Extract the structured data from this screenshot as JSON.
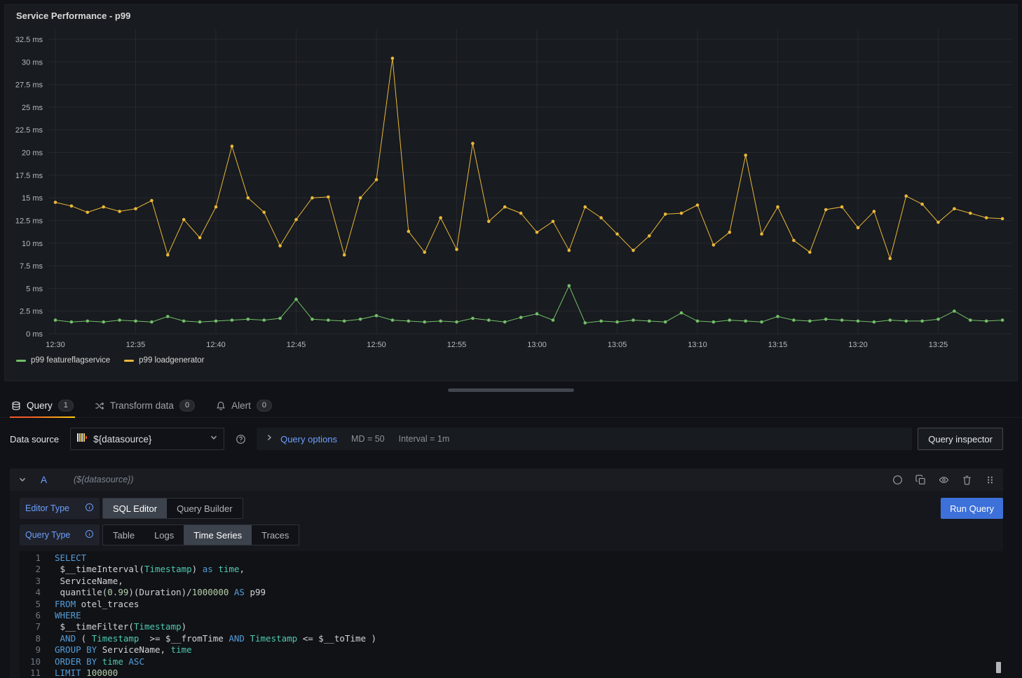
{
  "panel": {
    "title": "Service Performance - p99"
  },
  "chart_data": {
    "type": "line",
    "title": "Service Performance - p99",
    "x_start": "12:30",
    "x_end": "13:29",
    "interval_minutes": 1,
    "x_tick_labels": [
      "12:30",
      "12:35",
      "12:40",
      "12:45",
      "12:50",
      "12:55",
      "13:00",
      "13:05",
      "13:10",
      "13:15",
      "13:20",
      "13:25"
    ],
    "y_tick_labels": [
      "0 ms",
      "2.5 ms",
      "5 ms",
      "7.5 ms",
      "10 ms",
      "12.5 ms",
      "15 ms",
      "17.5 ms",
      "20 ms",
      "22.5 ms",
      "25 ms",
      "27.5 ms",
      "30 ms",
      "32.5 ms"
    ],
    "y_unit": "ms",
    "ylim": [
      0,
      34
    ],
    "grid": true,
    "legend_position": "bottom-left",
    "series": [
      {
        "name": "p99 featureflagservice",
        "color": "#73BF69",
        "values": [
          1.5,
          1.3,
          1.4,
          1.3,
          1.5,
          1.4,
          1.3,
          1.9,
          1.4,
          1.3,
          1.4,
          1.5,
          1.6,
          1.5,
          1.7,
          3.8,
          1.6,
          1.5,
          1.4,
          1.6,
          2.0,
          1.5,
          1.4,
          1.3,
          1.4,
          1.3,
          1.7,
          1.5,
          1.3,
          1.8,
          2.2,
          1.5,
          5.3,
          1.2,
          1.4,
          1.3,
          1.5,
          1.4,
          1.3,
          2.3,
          1.4,
          1.3,
          1.5,
          1.4,
          1.3,
          1.9,
          1.5,
          1.4,
          1.6,
          1.5,
          1.4,
          1.3,
          1.5,
          1.4,
          1.4,
          1.6,
          2.5,
          1.5,
          1.4,
          1.5
        ]
      },
      {
        "name": "p99 loadgenerator",
        "color": "#EAB839",
        "values": [
          14.5,
          14.1,
          13.4,
          14.0,
          13.5,
          13.8,
          14.7,
          8.7,
          12.6,
          10.6,
          14.0,
          20.7,
          15.0,
          13.4,
          9.7,
          12.6,
          15.0,
          15.1,
          8.7,
          15.0,
          17.0,
          30.4,
          11.3,
          9.0,
          12.8,
          9.3,
          21.0,
          12.4,
          14.0,
          13.3,
          11.2,
          12.4,
          9.2,
          14.0,
          12.8,
          11.0,
          9.2,
          10.8,
          13.2,
          13.3,
          14.2,
          9.8,
          11.2,
          19.7,
          11.0,
          14.0,
          10.3,
          9.0,
          13.7,
          14.0,
          11.7,
          13.5,
          8.3,
          15.2,
          14.3,
          12.3,
          13.8,
          13.3,
          12.8,
          12.7
        ]
      }
    ]
  },
  "tabs": [
    {
      "label": "Query",
      "count": "1",
      "active": true
    },
    {
      "label": "Transform data",
      "count": "0",
      "active": false
    },
    {
      "label": "Alert",
      "count": "0",
      "active": false
    }
  ],
  "toolbar": {
    "datasource_label": "Data source",
    "datasource_value": "${datasource}",
    "query_options_label": "Query options",
    "query_options_md": "MD = 50",
    "query_options_interval": "Interval = 1m",
    "query_inspector_label": "Query inspector"
  },
  "query": {
    "ref_id": "A",
    "datasource_hint": "(${datasource})",
    "editor_type_label": "Editor Type",
    "editor_type_options": [
      "SQL Editor",
      "Query Builder"
    ],
    "editor_type_selected": "SQL Editor",
    "query_type_label": "Query Type",
    "query_type_options": [
      "Table",
      "Logs",
      "Time Series",
      "Traces"
    ],
    "query_type_selected": "Time Series",
    "run_query_label": "Run Query",
    "sql_lines": [
      [
        {
          "t": "SELECT",
          "c": "kw"
        }
      ],
      [
        {
          "t": " $__timeInterval(",
          "c": "pl"
        },
        {
          "t": "Timestamp",
          "c": "ty"
        },
        {
          "t": ") ",
          "c": "pl"
        },
        {
          "t": "as",
          "c": "kw"
        },
        {
          "t": " ",
          "c": "pl"
        },
        {
          "t": "time",
          "c": "ty"
        },
        {
          "t": ",",
          "c": "pl"
        }
      ],
      [
        {
          "t": " ServiceName,",
          "c": "pl"
        }
      ],
      [
        {
          "t": " quantile(",
          "c": "pl"
        },
        {
          "t": "0.99",
          "c": "num"
        },
        {
          "t": ")(Duration)/",
          "c": "pl"
        },
        {
          "t": "1000000",
          "c": "num"
        },
        {
          "t": " ",
          "c": "pl"
        },
        {
          "t": "AS",
          "c": "kw"
        },
        {
          "t": " p99",
          "c": "pl"
        }
      ],
      [
        {
          "t": "FROM",
          "c": "kw"
        },
        {
          "t": " otel_traces",
          "c": "pl"
        }
      ],
      [
        {
          "t": "WHERE",
          "c": "kw"
        }
      ],
      [
        {
          "t": " $__timeFilter(",
          "c": "pl"
        },
        {
          "t": "Timestamp",
          "c": "ty"
        },
        {
          "t": ")",
          "c": "pl"
        }
      ],
      [
        {
          "t": " ",
          "c": "pl"
        },
        {
          "t": "AND",
          "c": "kw"
        },
        {
          "t": " ( ",
          "c": "pl"
        },
        {
          "t": "Timestamp",
          "c": "ty"
        },
        {
          "t": "  >= $__fromTime ",
          "c": "pl"
        },
        {
          "t": "AND",
          "c": "kw"
        },
        {
          "t": " ",
          "c": "pl"
        },
        {
          "t": "Timestamp",
          "c": "ty"
        },
        {
          "t": " <= $__toTime )",
          "c": "pl"
        }
      ],
      [
        {
          "t": "GROUP BY",
          "c": "kw"
        },
        {
          "t": " ServiceName, ",
          "c": "pl"
        },
        {
          "t": "time",
          "c": "ty"
        }
      ],
      [
        {
          "t": "ORDER BY",
          "c": "kw"
        },
        {
          "t": " ",
          "c": "pl"
        },
        {
          "t": "time",
          "c": "ty"
        },
        {
          "t": " ",
          "c": "pl"
        },
        {
          "t": "ASC",
          "c": "kw"
        }
      ],
      [
        {
          "t": "LIMIT",
          "c": "kw"
        },
        {
          "t": " ",
          "c": "pl"
        },
        {
          "t": "100000",
          "c": "num"
        }
      ]
    ]
  },
  "colors": {
    "accent_blue": "#3D71D9",
    "link_blue": "#6E9FFF",
    "tab_underline_start": "#F05A28",
    "tab_underline_end": "#FBCA0A",
    "series_green": "#73BF69",
    "series_yellow": "#EAB839"
  }
}
